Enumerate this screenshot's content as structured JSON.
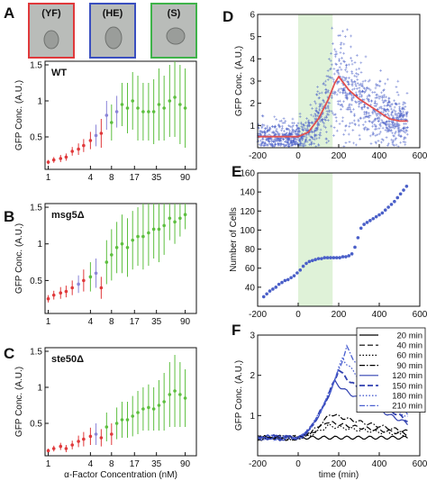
{
  "figure": {
    "panel_letters": [
      "A",
      "B",
      "C",
      "D",
      "E",
      "F"
    ],
    "thumbnails": [
      {
        "label": "(YF)",
        "color": "#e0393b"
      },
      {
        "label": "(HE)",
        "color": "#3a4fc0"
      },
      {
        "label": "(S)",
        "color": "#3fb34a"
      }
    ],
    "colors": {
      "yf": "#e0393b",
      "he": "#8a84d8",
      "s": "#5dbf3f",
      "scatter": "#4a5fc8",
      "fit": "#e05050",
      "shade": "#dff2d8"
    }
  },
  "chart_data": [
    {
      "id": "A",
      "type": "scatter",
      "title": "WT",
      "xlabel": "",
      "ylabel": "GFP Conc. (A.U.)",
      "xscale": "log",
      "xticks": [
        1,
        4,
        8,
        17,
        35,
        90
      ],
      "yticks": [
        0.5,
        1,
        1.5
      ],
      "ytick_labels": [
        "0.5",
        "1",
        "1.5"
      ],
      "ylim": [
        0.05,
        1.55
      ],
      "points": [
        {
          "x": 1.0,
          "y": 0.15,
          "err": 0.03,
          "state": "yf"
        },
        {
          "x": 1.2,
          "y": 0.18,
          "err": 0.04,
          "state": "yf"
        },
        {
          "x": 1.5,
          "y": 0.2,
          "err": 0.05,
          "state": "yf"
        },
        {
          "x": 1.8,
          "y": 0.22,
          "err": 0.05,
          "state": "yf"
        },
        {
          "x": 2.2,
          "y": 0.3,
          "err": 0.06,
          "state": "yf"
        },
        {
          "x": 2.7,
          "y": 0.33,
          "err": 0.08,
          "state": "yf"
        },
        {
          "x": 3.2,
          "y": 0.38,
          "err": 0.09,
          "state": "yf"
        },
        {
          "x": 4.0,
          "y": 0.45,
          "err": 0.12,
          "state": "yf"
        },
        {
          "x": 4.8,
          "y": 0.52,
          "err": 0.15,
          "state": "he"
        },
        {
          "x": 5.7,
          "y": 0.55,
          "err": 0.2,
          "state": "yf"
        },
        {
          "x": 6.8,
          "y": 0.8,
          "err": 0.2,
          "state": "he"
        },
        {
          "x": 8.0,
          "y": 0.7,
          "err": 0.25,
          "state": "s"
        },
        {
          "x": 9.5,
          "y": 0.85,
          "err": 0.22,
          "state": "he"
        },
        {
          "x": 11.3,
          "y": 0.95,
          "err": 0.3,
          "state": "s"
        },
        {
          "x": 13.5,
          "y": 0.9,
          "err": 0.35,
          "state": "s"
        },
        {
          "x": 16.0,
          "y": 1.0,
          "err": 0.4,
          "state": "s"
        },
        {
          "x": 19.0,
          "y": 0.9,
          "err": 0.45,
          "state": "s"
        },
        {
          "x": 22.6,
          "y": 0.85,
          "err": 0.4,
          "state": "s"
        },
        {
          "x": 27.0,
          "y": 0.85,
          "err": 0.4,
          "state": "s"
        },
        {
          "x": 32.0,
          "y": 0.85,
          "err": 0.45,
          "state": "s"
        },
        {
          "x": 38.0,
          "y": 0.95,
          "err": 0.5,
          "state": "s"
        },
        {
          "x": 45.0,
          "y": 0.9,
          "err": 0.45,
          "state": "s"
        },
        {
          "x": 54.0,
          "y": 1.0,
          "err": 0.5,
          "state": "s"
        },
        {
          "x": 64.0,
          "y": 1.05,
          "err": 0.55,
          "state": "s"
        },
        {
          "x": 76.0,
          "y": 0.95,
          "err": 0.55,
          "state": "s"
        },
        {
          "x": 90.0,
          "y": 0.9,
          "err": 0.55,
          "state": "s"
        }
      ]
    },
    {
      "id": "B",
      "type": "scatter",
      "title": "msg5Δ",
      "xlabel": "",
      "ylabel": "GFP Conc. (A.U.)",
      "xscale": "log",
      "xticks": [
        1,
        4,
        8,
        17,
        35,
        90
      ],
      "yticks": [
        0.5,
        1,
        1.5
      ],
      "ytick_labels": [
        "0.5",
        "1",
        "1.5"
      ],
      "ylim": [
        0.05,
        1.55
      ],
      "points": [
        {
          "x": 1.0,
          "y": 0.25,
          "err": 0.05,
          "state": "yf"
        },
        {
          "x": 1.2,
          "y": 0.3,
          "err": 0.06,
          "state": "yf"
        },
        {
          "x": 1.5,
          "y": 0.33,
          "err": 0.08,
          "state": "yf"
        },
        {
          "x": 1.8,
          "y": 0.35,
          "err": 0.08,
          "state": "yf"
        },
        {
          "x": 2.2,
          "y": 0.4,
          "err": 0.1,
          "state": "yf"
        },
        {
          "x": 2.7,
          "y": 0.45,
          "err": 0.12,
          "state": "he"
        },
        {
          "x": 3.2,
          "y": 0.5,
          "err": 0.15,
          "state": "yf"
        },
        {
          "x": 4.0,
          "y": 0.55,
          "err": 0.2,
          "state": "s"
        },
        {
          "x": 4.8,
          "y": 0.6,
          "err": 0.2,
          "state": "he"
        },
        {
          "x": 5.7,
          "y": 0.4,
          "err": 0.15,
          "state": "yf"
        },
        {
          "x": 6.8,
          "y": 0.75,
          "err": 0.3,
          "state": "s"
        },
        {
          "x": 8.0,
          "y": 0.85,
          "err": 0.35,
          "state": "s"
        },
        {
          "x": 9.5,
          "y": 0.95,
          "err": 0.35,
          "state": "s"
        },
        {
          "x": 11.3,
          "y": 1.0,
          "err": 0.4,
          "state": "s"
        },
        {
          "x": 13.5,
          "y": 0.95,
          "err": 0.4,
          "state": "s"
        },
        {
          "x": 16.0,
          "y": 1.05,
          "err": 0.4,
          "state": "s"
        },
        {
          "x": 19.0,
          "y": 1.1,
          "err": 0.4,
          "state": "s"
        },
        {
          "x": 22.6,
          "y": 1.1,
          "err": 0.45,
          "state": "s"
        },
        {
          "x": 27.0,
          "y": 1.15,
          "err": 0.45,
          "state": "s"
        },
        {
          "x": 32.0,
          "y": 1.2,
          "err": 0.4,
          "state": "s"
        },
        {
          "x": 38.0,
          "y": 1.2,
          "err": 0.45,
          "state": "s"
        },
        {
          "x": 45.0,
          "y": 1.25,
          "err": 0.4,
          "state": "s"
        },
        {
          "x": 54.0,
          "y": 1.35,
          "err": 0.3,
          "state": "s"
        },
        {
          "x": 64.0,
          "y": 1.3,
          "err": 0.3,
          "state": "s"
        },
        {
          "x": 76.0,
          "y": 1.35,
          "err": 0.25,
          "state": "s"
        },
        {
          "x": 90.0,
          "y": 1.4,
          "err": 0.2,
          "state": "s"
        }
      ]
    },
    {
      "id": "C",
      "type": "scatter",
      "title": "ste50Δ",
      "xlabel": "α-Factor Concentration (nM)",
      "ylabel": "GFP Conc. (A.U.)",
      "xscale": "log",
      "xticks": [
        1,
        4,
        8,
        17,
        35,
        90
      ],
      "yticks": [
        0.5,
        1,
        1.5
      ],
      "ytick_labels": [
        "0.5",
        "1",
        "1.5"
      ],
      "ylim": [
        0.05,
        1.55
      ],
      "points": [
        {
          "x": 1.0,
          "y": 0.12,
          "err": 0.03,
          "state": "yf"
        },
        {
          "x": 1.2,
          "y": 0.15,
          "err": 0.04,
          "state": "yf"
        },
        {
          "x": 1.5,
          "y": 0.18,
          "err": 0.05,
          "state": "yf"
        },
        {
          "x": 1.8,
          "y": 0.15,
          "err": 0.05,
          "state": "yf"
        },
        {
          "x": 2.2,
          "y": 0.2,
          "err": 0.06,
          "state": "yf"
        },
        {
          "x": 2.7,
          "y": 0.25,
          "err": 0.08,
          "state": "yf"
        },
        {
          "x": 3.2,
          "y": 0.28,
          "err": 0.1,
          "state": "yf"
        },
        {
          "x": 4.0,
          "y": 0.32,
          "err": 0.12,
          "state": "yf"
        },
        {
          "x": 4.8,
          "y": 0.35,
          "err": 0.15,
          "state": "he"
        },
        {
          "x": 5.7,
          "y": 0.3,
          "err": 0.12,
          "state": "yf"
        },
        {
          "x": 6.8,
          "y": 0.45,
          "err": 0.2,
          "state": "s"
        },
        {
          "x": 8.0,
          "y": 0.35,
          "err": 0.15,
          "state": "yf"
        },
        {
          "x": 9.5,
          "y": 0.5,
          "err": 0.22,
          "state": "s"
        },
        {
          "x": 11.3,
          "y": 0.55,
          "err": 0.25,
          "state": "s"
        },
        {
          "x": 13.5,
          "y": 0.55,
          "err": 0.25,
          "state": "s"
        },
        {
          "x": 16.0,
          "y": 0.6,
          "err": 0.28,
          "state": "s"
        },
        {
          "x": 19.0,
          "y": 0.65,
          "err": 0.3,
          "state": "s"
        },
        {
          "x": 22.6,
          "y": 0.7,
          "err": 0.3,
          "state": "s"
        },
        {
          "x": 27.0,
          "y": 0.72,
          "err": 0.32,
          "state": "s"
        },
        {
          "x": 32.0,
          "y": 0.7,
          "err": 0.3,
          "state": "s"
        },
        {
          "x": 38.0,
          "y": 0.75,
          "err": 0.35,
          "state": "s"
        },
        {
          "x": 45.0,
          "y": 0.8,
          "err": 0.4,
          "state": "s"
        },
        {
          "x": 54.0,
          "y": 0.9,
          "err": 0.45,
          "state": "s"
        },
        {
          "x": 64.0,
          "y": 0.95,
          "err": 0.5,
          "state": "s"
        },
        {
          "x": 76.0,
          "y": 0.9,
          "err": 0.45,
          "state": "s"
        },
        {
          "x": 90.0,
          "y": 0.85,
          "err": 0.4,
          "state": "s"
        }
      ]
    },
    {
      "id": "D",
      "type": "scatter",
      "title": "",
      "xlabel": "",
      "ylabel": "GFP Conc. (A.U.)",
      "xlim": [
        -200,
        600
      ],
      "ylim": [
        0,
        6
      ],
      "xticks": [
        -200,
        0,
        200,
        400,
        600
      ],
      "yticks": [
        1,
        2,
        3,
        4,
        5,
        6
      ],
      "shade": [
        0,
        170
      ],
      "trend": [
        [
          -200,
          0.5
        ],
        [
          0,
          0.5
        ],
        [
          50,
          0.7
        ],
        [
          100,
          1.3
        ],
        [
          150,
          2.2
        ],
        [
          180,
          2.9
        ],
        [
          200,
          3.2
        ],
        [
          250,
          2.6
        ],
        [
          300,
          2.2
        ],
        [
          350,
          1.9
        ],
        [
          400,
          1.6
        ],
        [
          450,
          1.3
        ],
        [
          500,
          1.2
        ],
        [
          540,
          1.2
        ]
      ],
      "band": {
        "x_start": -200,
        "x_end": 540,
        "n_points": 1200
      }
    },
    {
      "id": "E",
      "type": "scatter",
      "title": "",
      "xlabel": "",
      "ylabel": "Number of Cells",
      "xlim": [
        -200,
        600
      ],
      "ylim": [
        20,
        160
      ],
      "xticks": [
        -200,
        0,
        200,
        400,
        600
      ],
      "yticks": [
        40,
        60,
        80,
        100,
        120,
        140,
        160
      ],
      "shade": [
        0,
        170
      ],
      "x": [
        -170,
        -155,
        -140,
        -125,
        -110,
        -95,
        -80,
        -65,
        -50,
        -35,
        -20,
        -5,
        10,
        25,
        40,
        55,
        70,
        85,
        100,
        115,
        130,
        145,
        160,
        175,
        190,
        205,
        220,
        235,
        250,
        265,
        280,
        295,
        310,
        325,
        340,
        355,
        370,
        385,
        400,
        415,
        430,
        445,
        460,
        475,
        490,
        505,
        520,
        535
      ],
      "y": [
        30,
        33,
        36,
        38,
        40,
        43,
        45,
        47,
        48,
        50,
        52,
        55,
        58,
        62,
        65,
        67,
        68,
        69,
        70,
        70,
        71,
        71,
        71,
        71,
        71,
        71,
        72,
        72,
        73,
        75,
        82,
        92,
        102,
        106,
        108,
        110,
        112,
        114,
        116,
        118,
        121,
        124,
        127,
        130,
        134,
        138,
        142,
        146
      ]
    },
    {
      "id": "F",
      "type": "line",
      "title": "",
      "xlabel": "time (min)",
      "ylabel": "GFP Conc. (A.U.)",
      "xlim": [
        -200,
        600
      ],
      "ylim": [
        0,
        3
      ],
      "xticks": [
        -200,
        0,
        200,
        400,
        600
      ],
      "yticks": [
        1,
        2,
        3
      ],
      "legend_position": "top-right",
      "series": [
        {
          "name": "20 min",
          "color": "#000000",
          "dash": "",
          "width": 1.2,
          "peak": 0.45,
          "peak_x": 100
        },
        {
          "name": "40 min",
          "color": "#000000",
          "dash": "6,3",
          "width": 1.2,
          "peak": 0.85,
          "peak_x": 140
        },
        {
          "name": "60 min",
          "color": "#000000",
          "dash": "1.5,2",
          "width": 1.2,
          "peak": 0.75,
          "peak_x": 150
        },
        {
          "name": "90 min",
          "color": "#000000",
          "dash": "6,2,1.5,2",
          "width": 1.2,
          "peak": 1.05,
          "peak_x": 160
        },
        {
          "name": "120 min",
          "color": "#3040b0",
          "dash": "",
          "width": 1.2,
          "peak": 1.85,
          "peak_x": 180
        },
        {
          "name": "150 min",
          "color": "#3040b0",
          "dash": "6,3",
          "width": 1.8,
          "peak": 2.15,
          "peak_x": 200
        },
        {
          "name": "180 min",
          "color": "#4a5fd0",
          "dash": "1.5,2",
          "width": 1.3,
          "peak": 2.45,
          "peak_x": 220
        },
        {
          "name": "210 min",
          "color": "#4a5fd0",
          "dash": "6,2,1.5,2",
          "width": 1.3,
          "peak": 2.7,
          "peak_x": 240
        }
      ]
    }
  ]
}
